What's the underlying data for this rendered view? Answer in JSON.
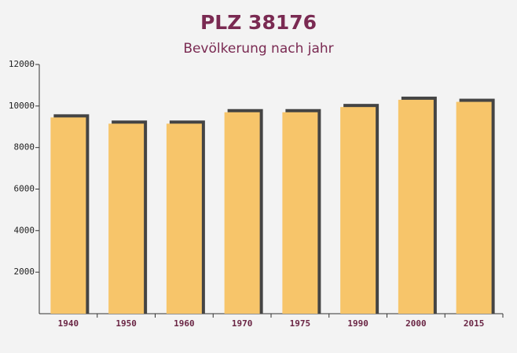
{
  "chart_data": {
    "type": "bar",
    "title": "PLZ 38176",
    "subtitle": "Bevölkerung nach jahr",
    "categories": [
      "1940",
      "1950",
      "1960",
      "1970",
      "1975",
      "1990",
      "2000",
      "2015"
    ],
    "values": [
      9450,
      9150,
      9150,
      9700,
      9700,
      9950,
      10300,
      10200
    ],
    "color": "#f7c56a",
    "ylim": [
      0,
      12000
    ],
    "yticks": [
      2000,
      4000,
      6000,
      8000,
      10000,
      12000
    ],
    "grid": false
  }
}
